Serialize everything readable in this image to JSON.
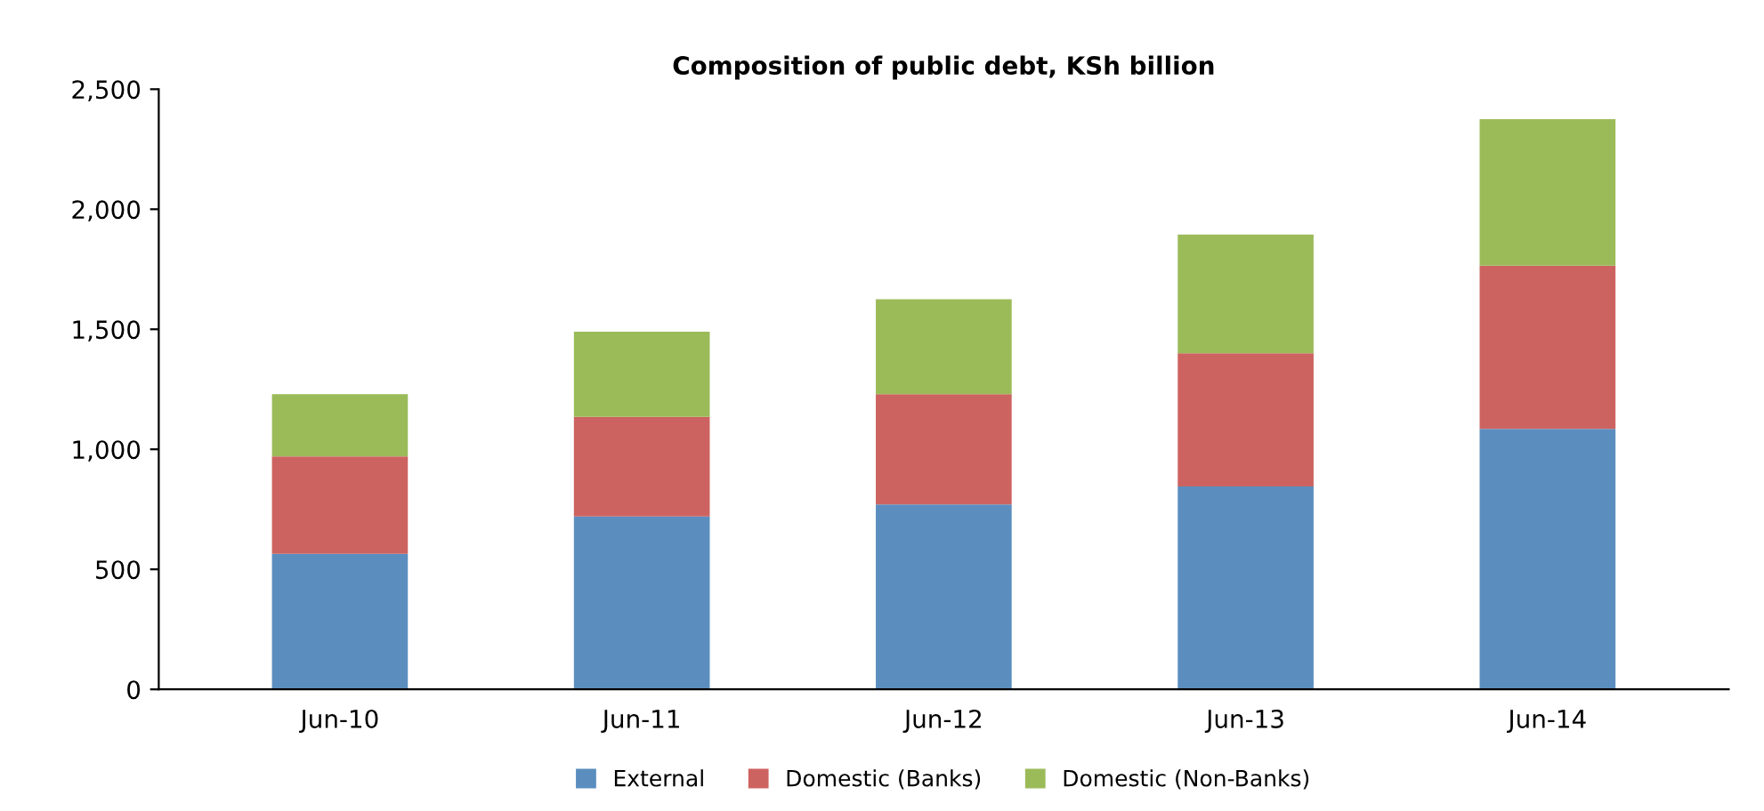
{
  "chart_data": {
    "type": "bar",
    "title": "Composition of public debt, KSh billion",
    "categories": [
      "Jun-10",
      "Jun-11",
      "Jun-12",
      "Jun-13",
      "Jun-14"
    ],
    "stacked": true,
    "series": [
      {
        "name": "External",
        "color": "#5b8ebf",
        "values": [
          565,
          720,
          770,
          845,
          1085
        ]
      },
      {
        "name": "Domestic (Banks)",
        "color": "#cd6360",
        "values": [
          405,
          415,
          460,
          555,
          680
        ]
      },
      {
        "name": "Domestic (Non-Banks)",
        "color": "#9bbb59",
        "values": [
          260,
          355,
          395,
          495,
          610
        ]
      }
    ],
    "ylim": [
      0,
      2500
    ],
    "yticks": [
      {
        "value": 0,
        "label": "0"
      },
      {
        "value": 500,
        "label": "500"
      },
      {
        "value": 1000,
        "label": "1,000"
      },
      {
        "value": 1500,
        "label": "1,500"
      },
      {
        "value": 2000,
        "label": "2,000"
      },
      {
        "value": 2500,
        "label": "2,500"
      }
    ],
    "grid": false,
    "legend": "bottom"
  }
}
